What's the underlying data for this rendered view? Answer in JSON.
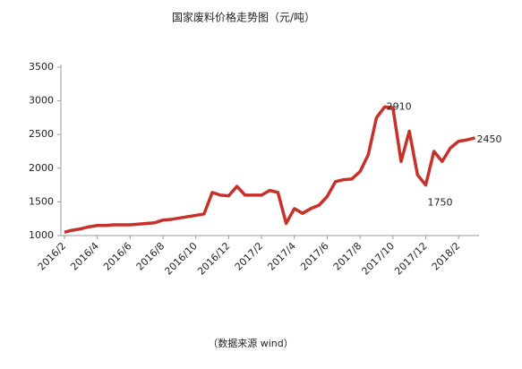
{
  "chart_data": {
    "type": "line",
    "title": "国家废料价格走势图（元/吨）",
    "source": "（数据来源 wind）",
    "categories": [
      "2016/2",
      null,
      null,
      null,
      "2016/4",
      null,
      null,
      null,
      "2016/6",
      null,
      null,
      null,
      "2016/8",
      null,
      null,
      null,
      "2016/10",
      null,
      null,
      null,
      "2016/12",
      null,
      null,
      null,
      "2017/2",
      null,
      null,
      null,
      "2017/4",
      null,
      null,
      null,
      "2017/6",
      null,
      null,
      null,
      "2017/8",
      null,
      null,
      null,
      "2017/10",
      null,
      null,
      null,
      "2017/12",
      null,
      null,
      null,
      "2018/2",
      null,
      null
    ],
    "series": [
      {
        "color": "#c8302a",
        "values": [
          1050,
          1080,
          1100,
          1130,
          1150,
          1150,
          1160,
          1160,
          1160,
          1170,
          1180,
          1190,
          1230,
          1240,
          1260,
          1280,
          1300,
          1320,
          1640,
          1600,
          1590,
          1730,
          1600,
          1600,
          1600,
          1670,
          1640,
          1180,
          1400,
          1330,
          1400,
          1450,
          1580,
          1800,
          1830,
          1840,
          1950,
          2200,
          2750,
          2910,
          2900,
          2100,
          2550,
          1900,
          1750,
          2250,
          2100,
          2300,
          2400,
          2420,
          2450
        ],
        "value_labels": [
          null,
          null,
          null,
          null,
          null,
          null,
          null,
          null,
          null,
          null,
          null,
          null,
          null,
          null,
          null,
          null,
          null,
          null,
          null,
          null,
          null,
          null,
          null,
          null,
          null,
          null,
          null,
          null,
          null,
          null,
          null,
          null,
          null,
          null,
          null,
          null,
          null,
          null,
          null,
          "2910",
          null,
          null,
          null,
          null,
          "1750",
          null,
          null,
          null,
          null,
          null,
          "2450"
        ]
      }
    ],
    "ylim": [
      1000,
      3500
    ],
    "yticks": [
      1000,
      1500,
      2000,
      2500,
      3000,
      3500
    ],
    "grid": false
  }
}
